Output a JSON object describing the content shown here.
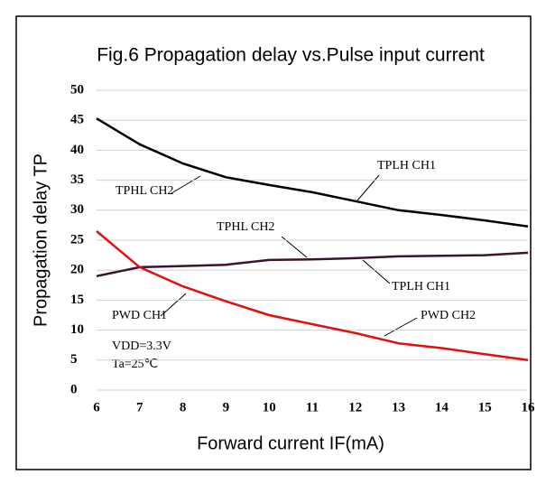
{
  "chart_data": {
    "type": "line",
    "title": "Fig.6 Propagation delay vs.Pulse input current",
    "xlabel": "Forward current IF(mA)",
    "ylabel": "Propagation delay TP",
    "x": [
      6,
      7,
      8,
      9,
      10,
      11,
      12,
      13,
      14,
      15,
      16
    ],
    "series": [
      {
        "color": "#000000",
        "values": [
          45.3,
          41,
          37.8,
          35.5,
          34.2,
          33,
          31.5,
          30,
          29.2,
          28.3,
          27.3
        ]
      },
      {
        "color": "#3a1530",
        "values": [
          19,
          20.5,
          20.7,
          20.9,
          21.7,
          21.8,
          22,
          22.3,
          22.4,
          22.5,
          22.9
        ]
      },
      {
        "color": "#e01010",
        "values": [
          26.5,
          20.5,
          17.3,
          14.8,
          12.5,
          11,
          9.5,
          7.8,
          7,
          6,
          5
        ]
      }
    ],
    "xlim": [
      6,
      16
    ],
    "xticks": [
      6,
      7,
      8,
      9,
      10,
      11,
      12,
      13,
      14,
      15,
      16
    ],
    "ylim": [
      0,
      50
    ],
    "yticks": [
      0,
      5,
      10,
      15,
      20,
      25,
      30,
      35,
      40,
      45,
      50
    ],
    "grid": true,
    "annotations": [
      "TPHL CH2",
      "TPLH CH1",
      "TPHL  CH2",
      "TPLH CH1",
      "PWD CH1",
      "PWD CH2",
      "VDD=3.3V",
      "Ta=25℃"
    ]
  }
}
